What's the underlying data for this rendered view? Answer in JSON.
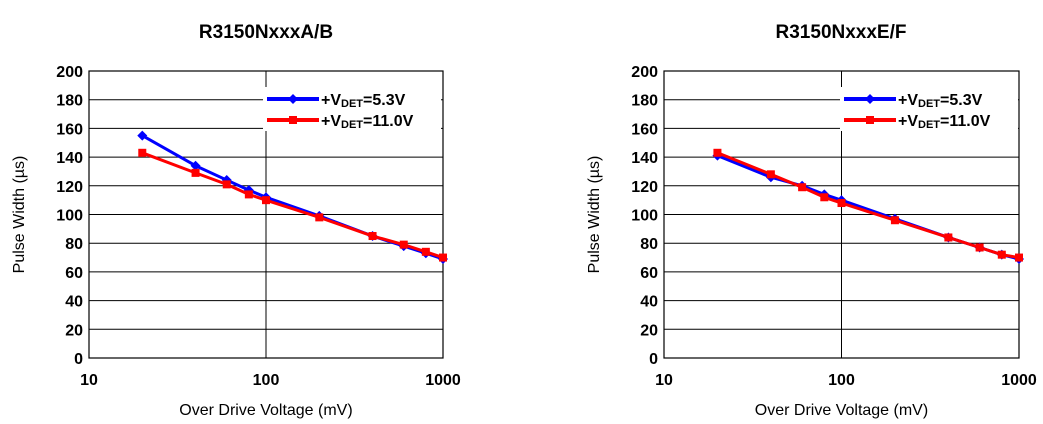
{
  "chart_data": [
    {
      "type": "line",
      "title": "R3150NxxxA/B",
      "xlabel": "Over Drive Voltage (mV)",
      "ylabel": "Pulse Width (µs)",
      "x_scale": "log",
      "xlim": [
        10,
        1000
      ],
      "ylim": [
        0,
        200
      ],
      "xticks": [
        "10",
        "100",
        "1000"
      ],
      "yticks": [
        "0",
        "20",
        "40",
        "60",
        "80",
        "100",
        "120",
        "140",
        "160",
        "180",
        "200"
      ],
      "grid": true,
      "legend_position": "top-right",
      "series": [
        {
          "legend_prefix": "+V",
          "legend_sub": "DET",
          "legend_suffix": "=5.3V",
          "color": "#0000ff",
          "marker": "diamond",
          "x": [
            20,
            40,
            60,
            80,
            100,
            200,
            400,
            600,
            800,
            1000
          ],
          "y": [
            155,
            134,
            124,
            117,
            112,
            99,
            85,
            78,
            73,
            69
          ]
        },
        {
          "legend_prefix": "+V",
          "legend_sub": "DET",
          "legend_suffix": "=11.0V",
          "color": "#ff0000",
          "marker": "square",
          "x": [
            20,
            40,
            60,
            80,
            100,
            200,
            400,
            600,
            800,
            1000
          ],
          "y": [
            143,
            129,
            121,
            114,
            110,
            98,
            85,
            79,
            74,
            70
          ]
        }
      ]
    },
    {
      "type": "line",
      "title": "R3150NxxxE/F",
      "xlabel": "Over Drive Voltage (mV)",
      "ylabel": "Pulse Width (µs)",
      "x_scale": "log",
      "xlim": [
        10,
        1000
      ],
      "ylim": [
        0,
        200
      ],
      "xticks": [
        "10",
        "100",
        "1000"
      ],
      "yticks": [
        "0",
        "20",
        "40",
        "60",
        "80",
        "100",
        "120",
        "140",
        "160",
        "180",
        "200"
      ],
      "grid": true,
      "legend_position": "top-right",
      "series": [
        {
          "legend_prefix": "+V",
          "legend_sub": "DET",
          "legend_suffix": "=5.3V",
          "color": "#0000ff",
          "marker": "diamond",
          "x": [
            20,
            40,
            60,
            80,
            100,
            200,
            400,
            600,
            800,
            1000
          ],
          "y": [
            141,
            126,
            120,
            114,
            110,
            97,
            84,
            77,
            72,
            69
          ]
        },
        {
          "legend_prefix": "+V",
          "legend_sub": "DET",
          "legend_suffix": "=11.0V",
          "color": "#ff0000",
          "marker": "square",
          "x": [
            20,
            40,
            60,
            80,
            100,
            200,
            400,
            600,
            800,
            1000
          ],
          "y": [
            143,
            128,
            119,
            112,
            108,
            96,
            84,
            77,
            72,
            70
          ]
        }
      ]
    }
  ]
}
